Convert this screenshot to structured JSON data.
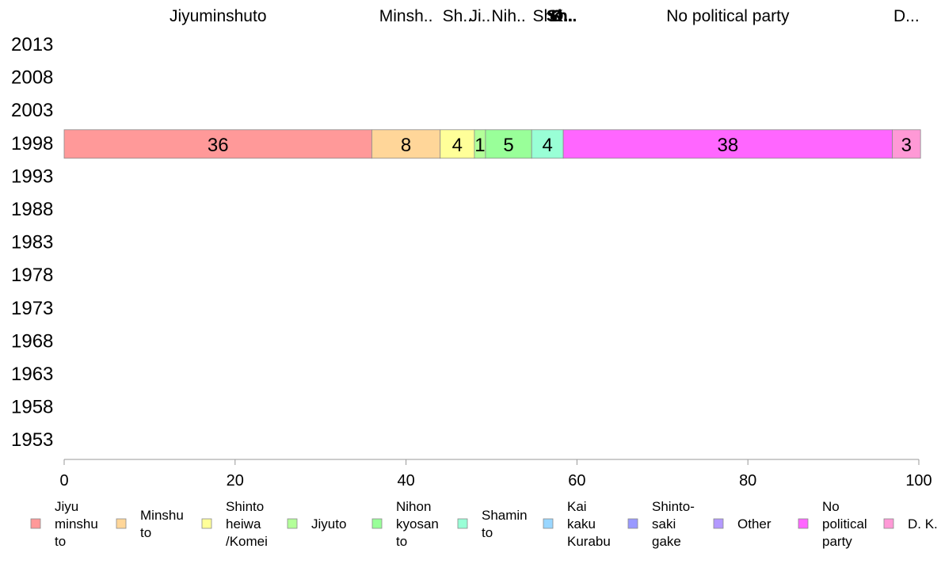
{
  "chart_data": {
    "type": "bar",
    "orientation": "horizontal-stacked",
    "categories": [
      "2013",
      "2008",
      "2003",
      "1998",
      "1993",
      "1988",
      "1983",
      "1978",
      "1973",
      "1968",
      "1963",
      "1958",
      "1953"
    ],
    "xlim": [
      0,
      100
    ],
    "xticks": [
      0,
      20,
      40,
      60,
      80,
      100
    ],
    "grid": false,
    "legend_position": "bottom",
    "series": [
      {
        "name": "Jiyu minshu to",
        "top_label": "Jiyuminshuto",
        "color": "#ff9999",
        "values": {
          "1998": 36
        }
      },
      {
        "name": "Minshu to",
        "top_label": "Minsh..",
        "color": "#ffd699",
        "values": {
          "1998": 8
        }
      },
      {
        "name": "Shinto heiwa /Komei",
        "top_label": "Sh..",
        "color": "#ffff99",
        "values": {
          "1998": 4
        }
      },
      {
        "name": "Jiyuto",
        "top_label": "Ji..",
        "color": "#b3ff99",
        "values": {
          "1998": 1.3
        }
      },
      {
        "name": "Nihon kyosan to",
        "top_label": "Nih..",
        "color": "#99ff99",
        "values": {
          "1998": 5.4
        }
      },
      {
        "name": "Shamin to",
        "top_label": "Sh..",
        "color": "#99ffd6",
        "values": {
          "1998": 3.7
        }
      },
      {
        "name": "Kai kaku Kurabu",
        "top_label": "K..",
        "color": "#99d6ff",
        "values": {
          "1998": 0
        }
      },
      {
        "name": "Shinto-saki gake",
        "top_label": "Sh..",
        "color": "#9999ff",
        "values": {
          "1998": 0
        }
      },
      {
        "name": "Other",
        "top_label": "O..",
        "color": "#b399ff",
        "values": {
          "1998": 0
        }
      },
      {
        "name": "No political party",
        "top_label": "No political party",
        "color": "#ff66ff",
        "values": {
          "1998": 38.5
        }
      },
      {
        "name": "D. K.",
        "top_label": "D...",
        "color": "#ff99d6",
        "values": {
          "1998": 3.3
        }
      }
    ],
    "bar_value_labels": [
      "36",
      "8",
      "4",
      "1",
      "5",
      "4",
      "",
      "",
      "",
      "38",
      "3"
    ],
    "legend_lines": [
      [
        "Jiyu",
        "minshu",
        "to"
      ],
      [
        "Minshu",
        "to"
      ],
      [
        "Shinto",
        "heiwa",
        "/Komei"
      ],
      [
        "Jiyuto"
      ],
      [
        "Nihon",
        "kyosan",
        "to"
      ],
      [
        "Shamin",
        "to"
      ],
      [
        "Kai",
        "kaku",
        "Kurabu"
      ],
      [
        "Shinto-",
        "saki",
        "gake"
      ],
      [
        "Other"
      ],
      [
        "No",
        "political",
        "party"
      ],
      [
        "D. K."
      ]
    ]
  }
}
